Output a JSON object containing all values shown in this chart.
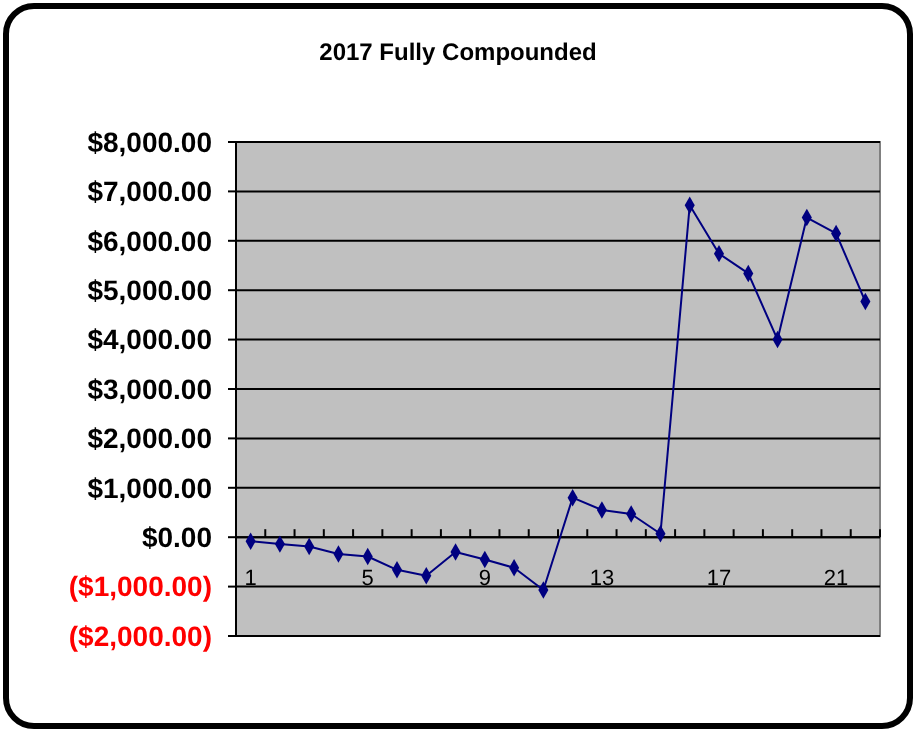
{
  "chart_data": {
    "type": "line",
    "title": "2017 Fully Compounded",
    "categories": [
      "1",
      null,
      null,
      null,
      "5",
      null,
      null,
      null,
      "9",
      null,
      null,
      null,
      "13",
      null,
      null,
      null,
      "17",
      null,
      null,
      null,
      "21",
      null
    ],
    "series": [
      {
        "color": "#000080",
        "values": [
          -80,
          -140,
          -190,
          -340,
          -390,
          -660,
          -780,
          -300,
          -450,
          -620,
          -1070,
          800,
          550,
          470,
          70,
          6720,
          5740,
          5340,
          4000,
          6470,
          6150,
          4770
        ]
      }
    ],
    "ylim": [
      -2000,
      8000
    ],
    "yticks": [
      {
        "value": -2000,
        "label": "($2,000.00)"
      },
      {
        "value": -1000,
        "label": "($1,000.00)"
      },
      {
        "value": 0,
        "label": "$0.00"
      },
      {
        "value": 1000,
        "label": "$1,000.00"
      },
      {
        "value": 2000,
        "label": "$2,000.00"
      },
      {
        "value": 3000,
        "label": "$3,000.00"
      },
      {
        "value": 4000,
        "label": "$4,000.00"
      },
      {
        "value": 5000,
        "label": "$5,000.00"
      },
      {
        "value": 6000,
        "label": "$6,000.00"
      },
      {
        "value": 7000,
        "label": "$7,000.00"
      },
      {
        "value": 8000,
        "label": "$8,000.00"
      }
    ],
    "grid": "y",
    "marker": "diamond",
    "line_style": "solid"
  }
}
